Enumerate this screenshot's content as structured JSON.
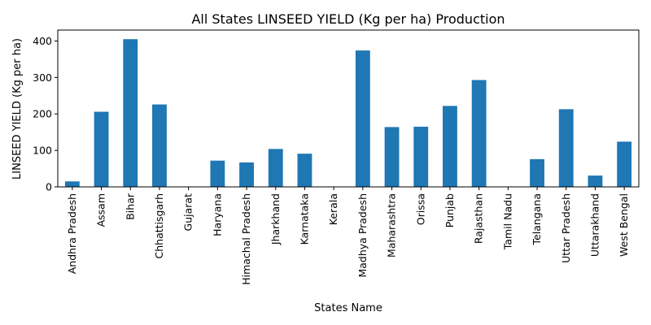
{
  "chart_data": {
    "type": "bar",
    "title": "All States LINSEED YIELD (Kg per ha) Production",
    "xlabel": "States Name",
    "ylabel": "LINSEED YIELD (Kg per ha)",
    "categories": [
      "Andhra Pradesh",
      "Assam",
      "Bihar",
      "Chhattisgarh",
      "Gujarat",
      "Haryana",
      "Himachal Pradesh",
      "Jharkhand",
      "Karnataka",
      "Kerala",
      "Madhya Pradesh",
      "Maharashtra",
      "Orissa",
      "Punjab",
      "Rajasthan",
      "Tamil Nadu",
      "Telangana",
      "Uttar Pradesh",
      "Uttarakhand",
      "West Bengal"
    ],
    "values": [
      15,
      206,
      405,
      226,
      0,
      72,
      67,
      104,
      91,
      0,
      374,
      164,
      165,
      222,
      293,
      0,
      76,
      213,
      31,
      124
    ],
    "ylim": [
      0,
      430
    ],
    "yticks": [
      0,
      100,
      200,
      300,
      400
    ],
    "grid": false,
    "legend": false,
    "colors": {
      "bar": "#1f77b4"
    }
  }
}
